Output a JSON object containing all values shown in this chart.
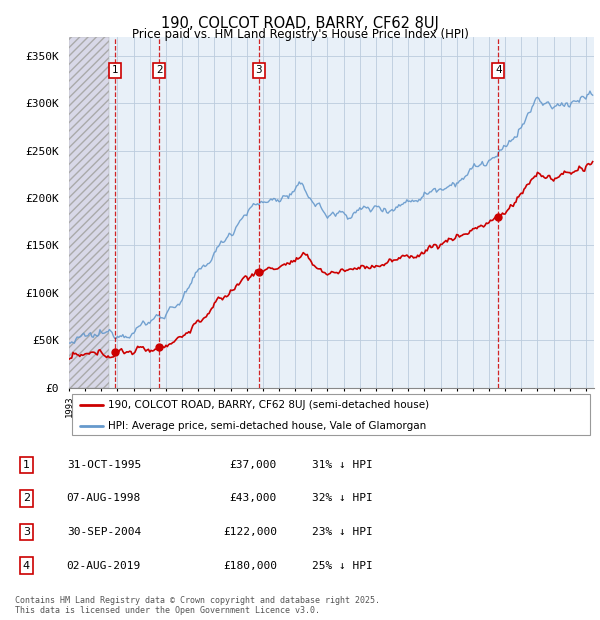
{
  "title": "190, COLCOT ROAD, BARRY, CF62 8UJ",
  "subtitle": "Price paid vs. HM Land Registry's House Price Index (HPI)",
  "ylabel_ticks": [
    "£0",
    "£50K",
    "£100K",
    "£150K",
    "£200K",
    "£250K",
    "£300K",
    "£350K"
  ],
  "ytick_values": [
    0,
    50000,
    100000,
    150000,
    200000,
    250000,
    300000,
    350000
  ],
  "ylim": [
    0,
    370000
  ],
  "xlim_start": 1993.0,
  "xlim_end": 2025.5,
  "sale_dates": [
    1995.83,
    1998.58,
    2004.75,
    2019.58
  ],
  "sale_prices": [
    37000,
    43000,
    122000,
    180000
  ],
  "sale_labels": [
    "1",
    "2",
    "3",
    "4"
  ],
  "legend_entries": [
    "190, COLCOT ROAD, BARRY, CF62 8UJ (semi-detached house)",
    "HPI: Average price, semi-detached house, Vale of Glamorgan"
  ],
  "table_data": [
    [
      "1",
      "31-OCT-1995",
      "£37,000",
      "31% ↓ HPI"
    ],
    [
      "2",
      "07-AUG-1998",
      "£43,000",
      "32% ↓ HPI"
    ],
    [
      "3",
      "30-SEP-2004",
      "£122,000",
      "23% ↓ HPI"
    ],
    [
      "4",
      "02-AUG-2019",
      "£180,000",
      "25% ↓ HPI"
    ]
  ],
  "footer": "Contains HM Land Registry data © Crown copyright and database right 2025.\nThis data is licensed under the Open Government Licence v3.0.",
  "sale_line_color": "#cc0000",
  "hpi_line_color": "#6699cc",
  "hpi_fill_color": "#ddeeff",
  "hatch_fill_color": "#d8d8e8",
  "grid_color": "#bbccdd",
  "vline_color": "#cc0000",
  "chart_bg_color": "#e8f0f8"
}
